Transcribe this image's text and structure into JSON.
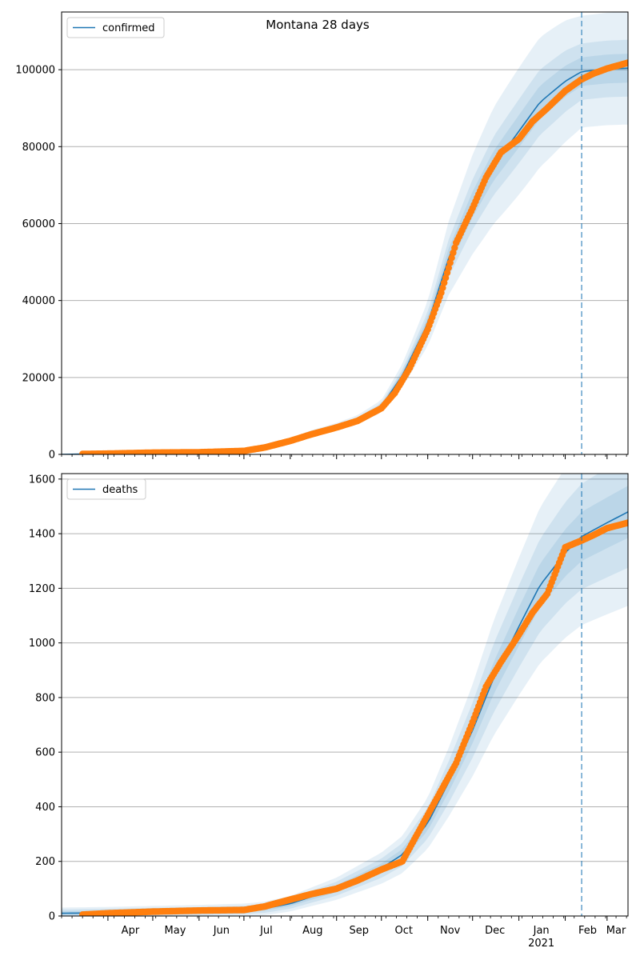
{
  "title": "Montana 28 days",
  "colors": {
    "model": "#1f77b4",
    "observed": "#ff7f0e",
    "band": "#1f77b4",
    "grid": "#b0b0b0",
    "forecast_line": "#1f77b4"
  },
  "chart_data": [
    {
      "type": "line",
      "legend": "confirmed",
      "legend_placement": "top-left",
      "grid": "horizontal",
      "xlim": [
        "2020-03-01",
        "2021-03-15"
      ],
      "ylim": [
        0,
        115000
      ],
      "yticks": [
        0,
        20000,
        40000,
        60000,
        80000,
        100000
      ],
      "ytick_labels": [
        "0",
        "20000",
        "40000",
        "60000",
        "80000",
        "100000"
      ],
      "forecast_start": "2021-02-12",
      "model_curve": {
        "x": [
          "2020-03-01",
          "2020-04-01",
          "2020-05-01",
          "2020-06-01",
          "2020-07-01",
          "2020-07-15",
          "2020-08-01",
          "2020-08-15",
          "2020-09-01",
          "2020-09-15",
          "2020-10-01",
          "2020-10-15",
          "2020-11-01",
          "2020-11-15",
          "2020-12-01",
          "2020-12-15",
          "2021-01-01",
          "2021-01-15",
          "2021-02-01",
          "2021-02-12",
          "2021-03-01",
          "2021-03-15"
        ],
        "y": [
          0,
          200,
          450,
          550,
          800,
          1800,
          3600,
          5500,
          7200,
          9000,
          12500,
          20500,
          34000,
          51000,
          65000,
          75000,
          84000,
          91500,
          97000,
          99500,
          100200,
          100400
        ],
        "band_spread_pct": [
          [
            0.12,
            0.2
          ],
          [
            0.06,
            0.1
          ],
          [
            0.03,
            0.05
          ]
        ]
      },
      "observed": {
        "x": [
          "2020-03-15",
          "2020-04-01",
          "2020-05-01",
          "2020-06-01",
          "2020-07-01",
          "2020-07-15",
          "2020-08-01",
          "2020-08-15",
          "2020-09-01",
          "2020-09-15",
          "2020-10-01",
          "2020-10-10",
          "2020-10-20",
          "2020-11-01",
          "2020-11-10",
          "2020-11-20",
          "2020-12-01",
          "2020-12-10",
          "2020-12-20",
          "2021-01-01",
          "2021-01-10",
          "2021-01-20",
          "2021-02-01",
          "2021-02-12",
          "2021-02-20",
          "2021-03-01",
          "2021-03-15"
        ],
        "y": [
          100,
          200,
          450,
          550,
          900,
          1800,
          3500,
          5200,
          7000,
          8700,
          12000,
          16000,
          22500,
          32500,
          42000,
          55000,
          64000,
          72000,
          78500,
          82000,
          86500,
          90000,
          94500,
          97500,
          99000,
          100300,
          101800
        ]
      }
    },
    {
      "type": "line",
      "legend": "deaths",
      "legend_placement": "top-left",
      "grid": "horizontal",
      "xlim": [
        "2020-03-01",
        "2021-03-15"
      ],
      "ylim": [
        0,
        1620
      ],
      "yticks": [
        0,
        200,
        400,
        600,
        800,
        1000,
        1200,
        1400,
        1600
      ],
      "ytick_labels": [
        "0",
        "200",
        "400",
        "600",
        "800",
        "1000",
        "1200",
        "1400",
        "1600"
      ],
      "forecast_start": "2021-02-12",
      "x_major_tick_labels": [
        {
          "date": "2020-04-01",
          "label": "Apr"
        },
        {
          "date": "2020-05-01",
          "label": "May"
        },
        {
          "date": "2020-06-01",
          "label": "Jun"
        },
        {
          "date": "2020-07-01",
          "label": "Jul"
        },
        {
          "date": "2020-08-01",
          "label": "Aug"
        },
        {
          "date": "2020-09-01",
          "label": "Sep"
        },
        {
          "date": "2020-10-01",
          "label": "Oct"
        },
        {
          "date": "2020-11-01",
          "label": "Nov"
        },
        {
          "date": "2020-12-01",
          "label": "Dec"
        },
        {
          "date": "2021-01-01",
          "label": "Jan"
        },
        {
          "date": "2021-02-01",
          "label": "Feb"
        },
        {
          "date": "2021-03-01",
          "label": "Mar"
        }
      ],
      "x_year_label": {
        "date": "2021-01-01",
        "label": "2021"
      },
      "model_curve": {
        "x": [
          "2020-03-01",
          "2020-04-01",
          "2020-05-01",
          "2020-06-01",
          "2020-07-01",
          "2020-07-15",
          "2020-08-01",
          "2020-08-15",
          "2020-09-01",
          "2020-09-15",
          "2020-10-01",
          "2020-10-15",
          "2020-11-01",
          "2020-11-15",
          "2020-12-01",
          "2020-12-15",
          "2021-01-01",
          "2021-01-15",
          "2021-02-01",
          "2021-02-12",
          "2021-03-01",
          "2021-03-15"
        ],
        "y": [
          10,
          12,
          15,
          18,
          22,
          28,
          45,
          70,
          100,
          135,
          175,
          225,
          340,
          490,
          680,
          870,
          1060,
          1210,
          1330,
          1390,
          1440,
          1480
        ],
        "band_spread": [
          [
            62,
            0.22
          ],
          [
            42,
            0.13
          ],
          [
            22,
            0.06
          ]
        ]
      },
      "observed": {
        "x": [
          "2020-03-15",
          "2020-04-01",
          "2020-05-01",
          "2020-06-01",
          "2020-07-01",
          "2020-07-15",
          "2020-08-01",
          "2020-08-15",
          "2020-09-01",
          "2020-09-15",
          "2020-10-01",
          "2020-10-15",
          "2020-11-01",
          "2020-11-10",
          "2020-11-20",
          "2020-12-01",
          "2020-12-10",
          "2020-12-20",
          "2021-01-01",
          "2021-01-10",
          "2021-01-20",
          "2021-02-01",
          "2021-02-12",
          "2021-02-20",
          "2021-03-01",
          "2021-03-15"
        ],
        "y": [
          5,
          10,
          16,
          20,
          22,
          35,
          60,
          80,
          100,
          130,
          170,
          200,
          370,
          460,
          560,
          710,
          840,
          930,
          1030,
          1110,
          1180,
          1350,
          1375,
          1395,
          1420,
          1440
        ]
      }
    }
  ]
}
